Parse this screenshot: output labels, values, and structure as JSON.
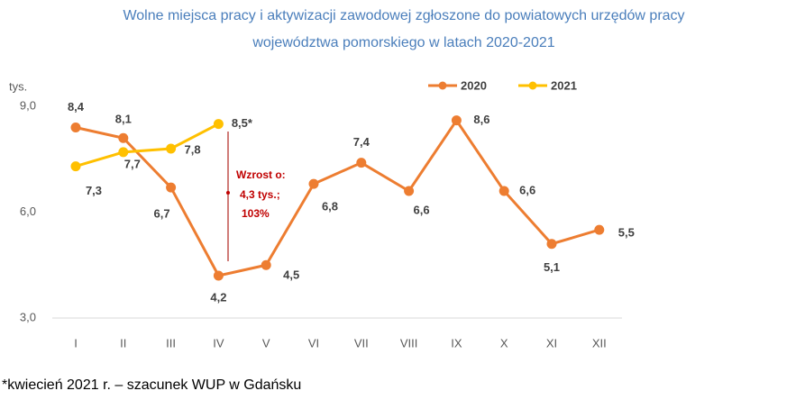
{
  "chart_data": {
    "type": "line",
    "title": [
      "Wolne miejsca pracy i aktywizacji zawodowej zgłoszone do powiatowych urzędów pracy",
      "województwa pomorskiego w latach 2020-2021"
    ],
    "y_label": "tys.",
    "categories": [
      "I",
      "II",
      "III",
      "IV",
      "V",
      "VI",
      "VII",
      "VIII",
      "IX",
      "X",
      "XI",
      "XII"
    ],
    "series": [
      {
        "name": "2020",
        "color": "#ed7d31",
        "values": [
          8.4,
          8.1,
          6.7,
          4.2,
          4.5,
          6.8,
          7.4,
          6.6,
          8.6,
          6.6,
          5.1,
          5.5
        ],
        "value_labels": [
          "8,4",
          "8,1",
          "6,7",
          "4,2",
          "4,5",
          "6,8",
          "7,4",
          "6,6",
          "8,6",
          "6,6",
          "5,1",
          "5,5"
        ]
      },
      {
        "name": "2021",
        "color": "#ffc000",
        "values": [
          7.3,
          7.7,
          7.8,
          8.5,
          null,
          null,
          null,
          null,
          null,
          null,
          null,
          null
        ],
        "value_labels": [
          "7,3",
          "7,7",
          "7,8",
          "8,5*",
          null,
          null,
          null,
          null,
          null,
          null,
          null,
          null
        ]
      }
    ],
    "ylim": [
      3,
      9
    ],
    "yticks": [
      {
        "value": 3,
        "label": "3,0"
      },
      {
        "value": 6,
        "label": "6,0"
      },
      {
        "value": 9,
        "label": "9,0"
      }
    ],
    "annotations": [
      "Wzrost o:",
      "4,3 tys.;",
      "103%"
    ],
    "footnote": "*kwiecień 2021 r. – szacunek WUP w Gdańsku"
  }
}
